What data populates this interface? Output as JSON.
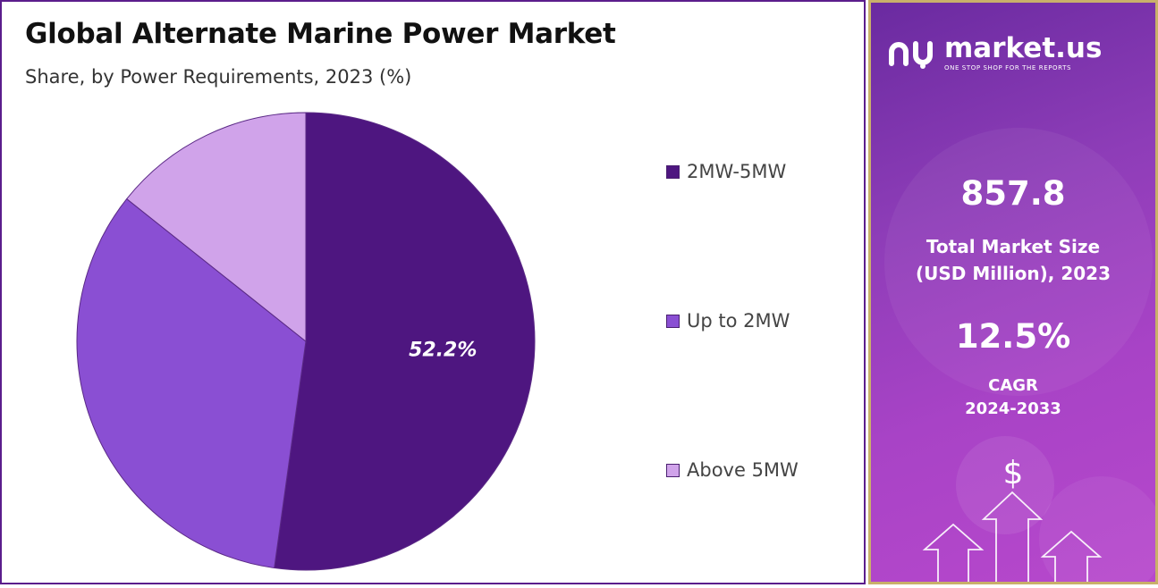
{
  "chart_data": {
    "type": "pie",
    "title": "Global Alternate Marine Power Market",
    "subtitle": "Share, by Power Requirements, 2023 (%)",
    "categories": [
      "2MW-5MW",
      "Up to 2MW",
      "Above 5MW"
    ],
    "values": [
      52.2,
      33.5,
      14.3
    ],
    "data_labels": [
      "52.2%",
      "",
      ""
    ],
    "colors": [
      "#4e1680",
      "#8a4fd3",
      "#d0a3ea"
    ],
    "legend_position": "right"
  },
  "sidebar": {
    "brand_name": "market.us",
    "brand_tagline": "ONE STOP SHOP FOR THE REPORTS",
    "market_size_value": "857.8",
    "market_size_label_1": "Total Market Size",
    "market_size_label_2": "(USD Million), 2023",
    "cagr_value": "12.5%",
    "cagr_label_1": "CAGR",
    "cagr_label_2": "2024-2033",
    "currency_symbol": "$"
  }
}
